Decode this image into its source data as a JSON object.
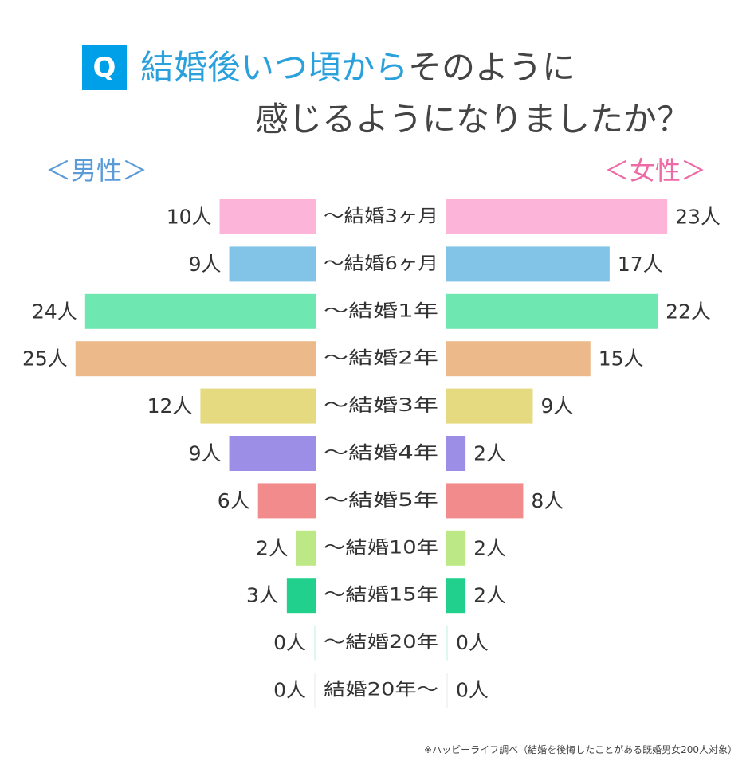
{
  "title": {
    "badge": "Q",
    "line1_accent": "結婚後いつ頃から",
    "line1_rest": "そのように",
    "line2": "感じるようになりましたか？"
  },
  "legend": {
    "male": "＜男性＞",
    "female": "＜女性＞"
  },
  "colors": {
    "male_legend": "#5b9bd8",
    "female_legend": "#ee6aa4",
    "title_accent": "#2aa1dc",
    "badge": "#00a0e9"
  },
  "chart_data": {
    "type": "bar",
    "orientation": "horizontal-butterfly",
    "unit": "人",
    "categories": [
      "～結婚3ヶ月",
      "～結婚6ヶ月",
      "～結婚1年",
      "～結婚2年",
      "～結婚3年",
      "～結婚4年",
      "～結婚5年",
      "～結婚10年",
      "～結婚15年",
      "～結婚20年",
      "結婚20年～"
    ],
    "series": [
      {
        "name": "＜男性＞",
        "values": [
          10,
          9,
          24,
          25,
          12,
          9,
          6,
          2,
          3,
          0,
          0
        ]
      },
      {
        "name": "＜女性＞",
        "values": [
          23,
          17,
          22,
          15,
          9,
          2,
          8,
          2,
          2,
          0,
          0
        ]
      }
    ],
    "category_colors": [
      "#fcb4d8",
      "#82c4e8",
      "#6ee8b0",
      "#ecb98a",
      "#e6da80",
      "#9c8ee6",
      "#f28c8c",
      "#bce886",
      "#20d08c",
      "#dff7f2",
      "#f4f4f4"
    ],
    "value_labels": {
      "male": [
        "10人",
        "9人",
        "24人",
        "25人",
        "12人",
        "9人",
        "6人",
        "2人",
        "3人",
        "0人",
        "0人"
      ],
      "female": [
        "23人",
        "17人",
        "22人",
        "15人",
        "9人",
        "2人",
        "8人",
        "2人",
        "2人",
        "0人",
        "0人"
      ]
    }
  },
  "footnote": "※ハッピーライフ調べ（結婚を後悔したことがある既婚男女200人対象）"
}
